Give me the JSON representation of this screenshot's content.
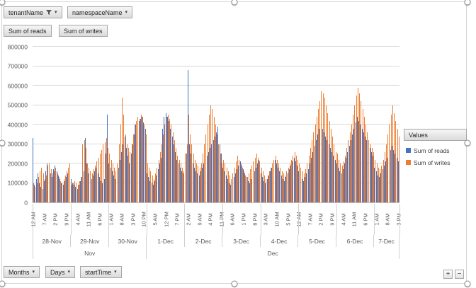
{
  "pivot_filters": {
    "tenant": "tenantName",
    "namespace": "namespaceName"
  },
  "value_field_buttons": {
    "reads": "Sum of reads",
    "writes": "Sum of writes"
  },
  "axis_field_buttons": {
    "months": "Months",
    "days": "Days",
    "start_time": "startTime"
  },
  "legend": {
    "title": "Values",
    "entries": [
      {
        "label": "Sum of reads",
        "color": "#4472C4"
      },
      {
        "label": "Sum of writes",
        "color": "#ED7D31"
      }
    ]
  },
  "zoom": {
    "plus": "+",
    "minus": "−"
  },
  "chart_data": {
    "type": "bar",
    "title": "",
    "xlabel": "",
    "ylabel": "",
    "ylim": [
      0,
      800000
    ],
    "ytick_step": 100000,
    "ytick_labels": [
      "0",
      "100000",
      "200000",
      "300000",
      "400000",
      "500000",
      "600000",
      "700000",
      "800000"
    ],
    "grid": "horizontal",
    "legend_position": "right",
    "x_hour_tick_interval": 7,
    "hour_tick_labels": [
      "12 AM",
      "7 AM",
      "2 PM",
      "9 PM",
      "4 AM",
      "11 AM",
      "6 PM",
      "1 AM",
      "8 AM",
      "3 PM",
      "10 PM",
      "5 AM",
      "12 PM",
      "7 PM",
      "2 AM",
      "9 AM",
      "4 PM",
      "11 PM",
      "6 AM",
      "1 PM",
      "8 PM",
      "3 AM",
      "10 AM",
      "5 PM",
      "12 AM",
      "7 AM",
      "2 PM",
      "9 PM",
      "4 AM",
      "11 AM",
      "6 PM",
      "1 AM",
      "8 AM",
      "3 PM"
    ],
    "dates": [
      {
        "label": "28-Nov",
        "hours": 24
      },
      {
        "label": "29-Nov",
        "hours": 24
      },
      {
        "label": "30-Nov",
        "hours": 24
      },
      {
        "label": "1-Dec",
        "hours": 24
      },
      {
        "label": "2-Dec",
        "hours": 24
      },
      {
        "label": "3-Dec",
        "hours": 24
      },
      {
        "label": "4-Dec",
        "hours": 24
      },
      {
        "label": "5-Dec",
        "hours": 24
      },
      {
        "label": "6-Dec",
        "hours": 24
      },
      {
        "label": "7-Dec",
        "hours": 16
      }
    ],
    "months": [
      {
        "label": "Nov",
        "hours": 72
      },
      {
        "label": "Dec",
        "hours": 160
      }
    ],
    "series": [
      {
        "name": "Sum of reads",
        "color": "#4472C4",
        "values": [
          330000,
          90000,
          120000,
          150000,
          100000,
          80000,
          70000,
          110000,
          160000,
          200000,
          180000,
          150000,
          130000,
          170000,
          190000,
          160000,
          140000,
          120000,
          100000,
          90000,
          110000,
          130000,
          150000,
          170000,
          120000,
          100000,
          90000,
          80000,
          70000,
          90000,
          110000,
          130000,
          160000,
          330000,
          200000,
          150000,
          130000,
          120000,
          140000,
          160000,
          180000,
          150000,
          130000,
          110000,
          100000,
          120000,
          250000,
          450000,
          200000,
          180000,
          160000,
          140000,
          120000,
          150000,
          180000,
          220000,
          260000,
          300000,
          340000,
          280000,
          240000,
          200000,
          250000,
          300000,
          350000,
          400000,
          440000,
          420000,
          430000,
          440000,
          410000,
          380000,
          150000,
          130000,
          110000,
          100000,
          90000,
          110000,
          140000,
          170000,
          200000,
          230000,
          380000,
          440000,
          460000,
          440000,
          420000,
          380000,
          340000,
          300000,
          260000,
          220000,
          200000,
          180000,
          160000,
          150000,
          200000,
          250000,
          680000,
          300000,
          250000,
          200000,
          180000,
          160000,
          150000,
          140000,
          160000,
          180000,
          200000,
          220000,
          240000,
          260000,
          280000,
          300000,
          320000,
          340000,
          360000,
          390000,
          300000,
          250000,
          180000,
          160000,
          140000,
          120000,
          100000,
          90000,
          110000,
          130000,
          150000,
          170000,
          190000,
          210000,
          190000,
          170000,
          150000,
          130000,
          110000,
          100000,
          120000,
          140000,
          160000,
          180000,
          200000,
          220000,
          150000,
          130000,
          110000,
          100000,
          120000,
          140000,
          160000,
          180000,
          200000,
          220000,
          200000,
          180000,
          160000,
          140000,
          120000,
          110000,
          130000,
          150000,
          170000,
          190000,
          210000,
          230000,
          210000,
          190000,
          160000,
          140000,
          120000,
          110000,
          130000,
          150000,
          170000,
          200000,
          230000,
          260000,
          290000,
          320000,
          350000,
          380000,
          400000,
          380000,
          360000,
          340000,
          320000,
          300000,
          280000,
          260000,
          240000,
          220000,
          200000,
          180000,
          160000,
          150000,
          170000,
          200000,
          230000,
          260000,
          290000,
          320000,
          350000,
          380000,
          410000,
          440000,
          420000,
          400000,
          380000,
          360000,
          340000,
          320000,
          300000,
          280000,
          260000,
          240000,
          180000,
          160000,
          140000,
          130000,
          150000,
          170000,
          190000,
          210000,
          230000,
          250000,
          270000,
          290000,
          270000,
          250000,
          230000,
          210000
        ]
      },
      {
        "name": "Sum of writes",
        "color": "#ED7D31",
        "values": [
          100000,
          80000,
          100000,
          130000,
          160000,
          180000,
          150000,
          120000,
          140000,
          190000,
          200000,
          170000,
          150000,
          160000,
          180000,
          150000,
          130000,
          110000,
          100000,
          120000,
          140000,
          160000,
          180000,
          200000,
          90000,
          100000,
          110000,
          100000,
          90000,
          110000,
          130000,
          300000,
          320000,
          280000,
          200000,
          180000,
          160000,
          150000,
          170000,
          190000,
          210000,
          230000,
          250000,
          270000,
          300000,
          310000,
          330000,
          280000,
          250000,
          220000,
          200000,
          180000,
          160000,
          200000,
          300000,
          400000,
          540000,
          450000,
          350000,
          300000,
          280000,
          260000,
          300000,
          350000,
          400000,
          420000,
          440000,
          430000,
          450000,
          440000,
          400000,
          350000,
          200000,
          180000,
          160000,
          140000,
          120000,
          150000,
          180000,
          220000,
          260000,
          300000,
          350000,
          400000,
          440000,
          450000,
          430000,
          400000,
          360000,
          320000,
          280000,
          240000,
          220000,
          200000,
          180000,
          160000,
          250000,
          300000,
          450000,
          350000,
          300000,
          250000,
          220000,
          200000,
          190000,
          180000,
          200000,
          250000,
          300000,
          350000,
          400000,
          450000,
          500000,
          480000,
          440000,
          400000,
          350000,
          300000,
          250000,
          200000,
          220000,
          200000,
          180000,
          160000,
          140000,
          120000,
          150000,
          180000,
          210000,
          240000,
          220000,
          200000,
          180000,
          160000,
          140000,
          130000,
          150000,
          170000,
          190000,
          210000,
          230000,
          250000,
          230000,
          210000,
          180000,
          160000,
          140000,
          120000,
          140000,
          160000,
          180000,
          200000,
          220000,
          240000,
          220000,
          200000,
          180000,
          160000,
          150000,
          140000,
          160000,
          180000,
          200000,
          220000,
          240000,
          260000,
          240000,
          220000,
          200000,
          180000,
          160000,
          150000,
          170000,
          200000,
          240000,
          280000,
          320000,
          360000,
          400000,
          440000,
          480000,
          520000,
          570000,
          560000,
          540000,
          500000,
          460000,
          420000,
          380000,
          340000,
          300000,
          260000,
          250000,
          220000,
          200000,
          190000,
          210000,
          240000,
          280000,
          320000,
          360000,
          400000,
          450000,
          500000,
          550000,
          590000,
          560000,
          520000,
          480000,
          440000,
          400000,
          360000,
          320000,
          300000,
          280000,
          260000,
          220000,
          200000,
          180000,
          170000,
          190000,
          220000,
          260000,
          300000,
          350000,
          400000,
          450000,
          500000,
          460000,
          420000,
          380000,
          340000
        ]
      }
    ]
  }
}
